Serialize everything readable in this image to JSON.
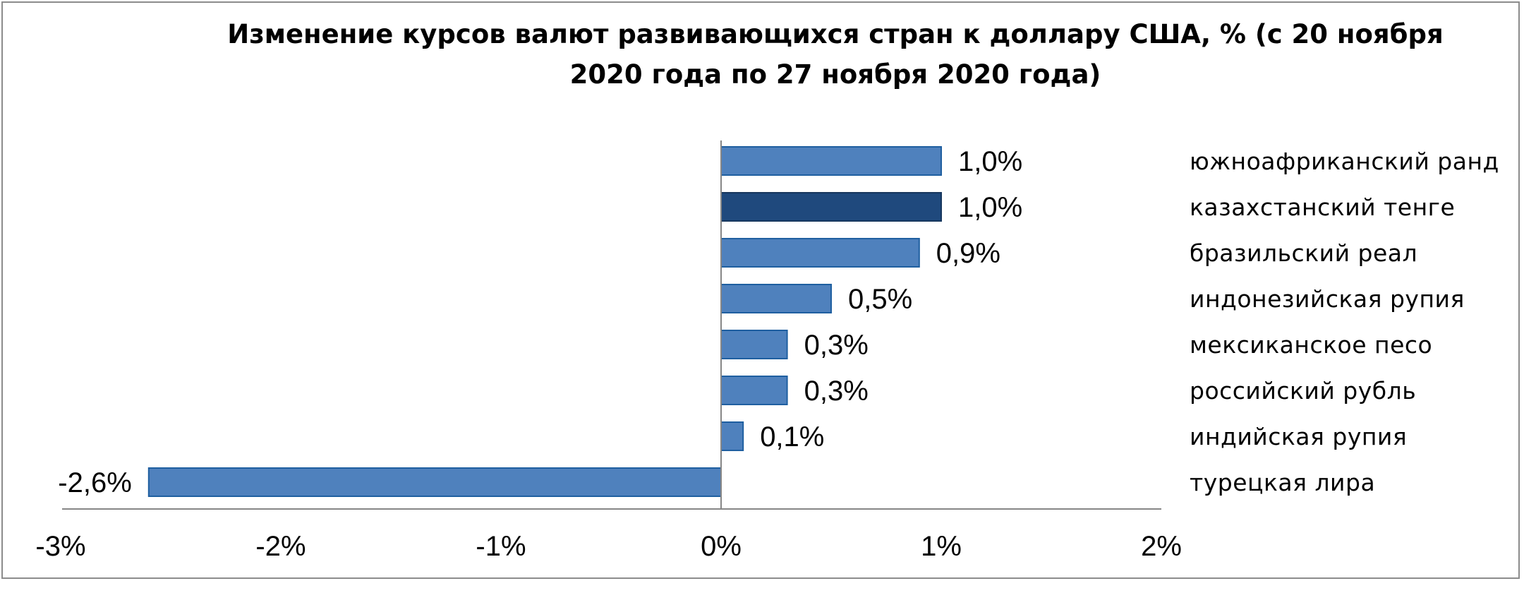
{
  "chart_data": {
    "type": "bar",
    "orientation": "horizontal",
    "title": "Изменение курсов валют развивающихся стран к доллару США, % (с 20 ноября 2020 года по 27 ноября 2020 года)",
    "title_lines": [
      "Изменение курсов валют развивающихся стран к доллару США, % (с 20 ноября",
      "2020 года по 27 ноября 2020 года)"
    ],
    "categories": [
      "южноафриканский ранд",
      "казахстанский тенге",
      "бразильский реал",
      "индонезийская рупия",
      "мексиканское песо",
      "российский рубль",
      "индийская рупия",
      "турецкая лира"
    ],
    "values": [
      1.0,
      1.0,
      0.9,
      0.5,
      0.3,
      0.3,
      0.1,
      -2.6
    ],
    "data_labels": [
      "1,0%",
      "1,0%",
      "0,9%",
      "0,5%",
      "0,3%",
      "0,3%",
      "0,1%",
      "-2,6%"
    ],
    "highlight_category": "казахстанский тенге",
    "xlim": [
      -3,
      2
    ],
    "xticks": [
      -3,
      -2,
      -1,
      0,
      1,
      2
    ],
    "xtick_labels": [
      "-3%",
      "-2%",
      "-1%",
      "0%",
      "1%",
      "2%"
    ],
    "grid": false,
    "colors": {
      "bar": "#4f81bd",
      "bar_border": "#1f5fa0",
      "highlight": "#1f497d",
      "highlight_border": "#17375e",
      "axis": "#868686"
    }
  }
}
